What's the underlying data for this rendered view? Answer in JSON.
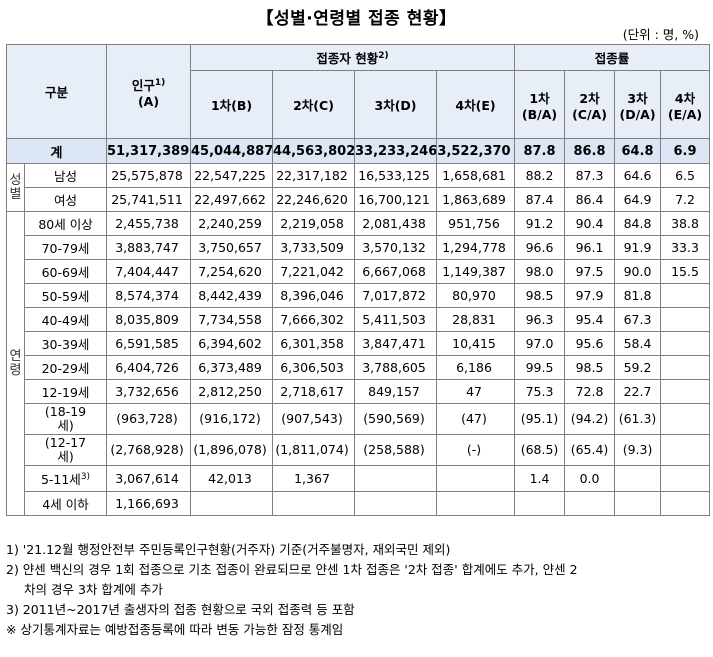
{
  "title": "【성별·연령별 접종 현황】",
  "unit": "(단위 : 명, %)",
  "header": {
    "category": "구분",
    "population": "인구",
    "population_sup": "1)",
    "population_sub": "(A)",
    "vaccinated_group": "접종자 현황",
    "vaccinated_sup": "2)",
    "rate_group": "접종률",
    "doses": [
      "1차(B)",
      "2차(C)",
      "3차(D)",
      "4차(E)"
    ],
    "rates": [
      {
        "line1": "1차",
        "line2": "(B/A)"
      },
      {
        "line1": "2차",
        "line2": "(C/A)"
      },
      {
        "line1": "3차",
        "line2": "(D/A)"
      },
      {
        "line1": "4차",
        "line2": "(E/A)"
      }
    ]
  },
  "total": {
    "label": "계",
    "cells": [
      "51,317,389",
      "45,044,887",
      "44,563,802",
      "33,233,246",
      "3,522,370",
      "87.8",
      "86.8",
      "64.8",
      "6.9"
    ]
  },
  "gender": {
    "group_label": [
      "성",
      "별"
    ],
    "rows": [
      {
        "label": "남성",
        "cells": [
          "25,575,878",
          "22,547,225",
          "22,317,182",
          "16,533,125",
          "1,658,681",
          "88.2",
          "87.3",
          "64.6",
          "6.5"
        ]
      },
      {
        "label": "여성",
        "cells": [
          "25,741,511",
          "22,497,662",
          "22,246,620",
          "16,700,121",
          "1,863,689",
          "87.4",
          "86.4",
          "64.9",
          "7.2"
        ]
      }
    ]
  },
  "age": {
    "group_label": [
      "연",
      "령"
    ],
    "rows": [
      {
        "label": "80세 이상",
        "cells": [
          "2,455,738",
          "2,240,259",
          "2,219,058",
          "2,081,438",
          "951,756",
          "91.2",
          "90.4",
          "84.8",
          "38.8"
        ]
      },
      {
        "label": "70-79세",
        "cells": [
          "3,883,747",
          "3,750,657",
          "3,733,509",
          "3,570,132",
          "1,294,778",
          "96.6",
          "96.1",
          "91.9",
          "33.3"
        ]
      },
      {
        "label": "60-69세",
        "cells": [
          "7,404,447",
          "7,254,620",
          "7,221,042",
          "6,667,068",
          "1,149,387",
          "98.0",
          "97.5",
          "90.0",
          "15.5"
        ]
      },
      {
        "label": "50-59세",
        "cells": [
          "8,574,374",
          "8,442,439",
          "8,396,046",
          "7,017,872",
          "80,970",
          "98.5",
          "97.9",
          "81.8",
          ""
        ]
      },
      {
        "label": "40-49세",
        "cells": [
          "8,035,809",
          "7,734,558",
          "7,666,302",
          "5,411,503",
          "28,831",
          "96.3",
          "95.4",
          "67.3",
          ""
        ]
      },
      {
        "label": "30-39세",
        "cells": [
          "6,591,585",
          "6,394,602",
          "6,301,358",
          "3,847,471",
          "10,415",
          "97.0",
          "95.6",
          "58.4",
          ""
        ]
      },
      {
        "label": "20-29세",
        "cells": [
          "6,404,726",
          "6,373,489",
          "6,306,503",
          "3,788,605",
          "6,186",
          "99.5",
          "98.5",
          "59.2",
          ""
        ]
      },
      {
        "label": "12-19세",
        "cells": [
          "3,732,656",
          "2,812,250",
          "2,718,617",
          "849,157",
          "47",
          "75.3",
          "72.8",
          "22.7",
          ""
        ]
      }
    ],
    "sub_18_19": {
      "label_line1": "(18-19",
      "label_line2": "세)",
      "cells": [
        "(963,728)",
        "(916,172)",
        "(907,543)",
        "(590,569)",
        "(47)",
        "(95.1)",
        "(94.2)",
        "(61.3)",
        ""
      ]
    },
    "sub_12_17": {
      "label_line1": "(12-17",
      "label_line2": "세)",
      "cells": [
        "(2,768,928)",
        "(1,896,078)",
        "(1,811,074)",
        "(258,588)",
        "(-)",
        "(68.5)",
        "(65.4)",
        "(9.3)",
        ""
      ]
    },
    "age_5_11": {
      "label": "5-11세",
      "label_sup": "3)",
      "cells": [
        "3,067,614",
        "42,013",
        "1,367",
        "",
        "",
        "1.4",
        "0.0",
        "",
        ""
      ]
    },
    "age_under4": {
      "label": "4세 이하",
      "cells": [
        "1,166,693",
        "",
        "",
        "",
        "",
        "",
        "",
        "",
        ""
      ]
    }
  },
  "notes": [
    "1) '21.12월 행정안전부 주민등록인구현황(거주자) 기준(거주불명자, 재외국민 제외)",
    "2) 얀센 백신의 경우 1회 접종으로 기초 접종이 완료되므로 얀센 1차 접종은 '2차 접종' 합계에도 추가, 얀센 2",
    "차의 경우 3차 합계에 추가",
    "3) 2011년~2017년 출생자의 접종 현황으로 국외 접종력 등 포함",
    "※ 상기통계자료는 예방접종등록에 따라 변동 가능한 잠정 통계임"
  ]
}
